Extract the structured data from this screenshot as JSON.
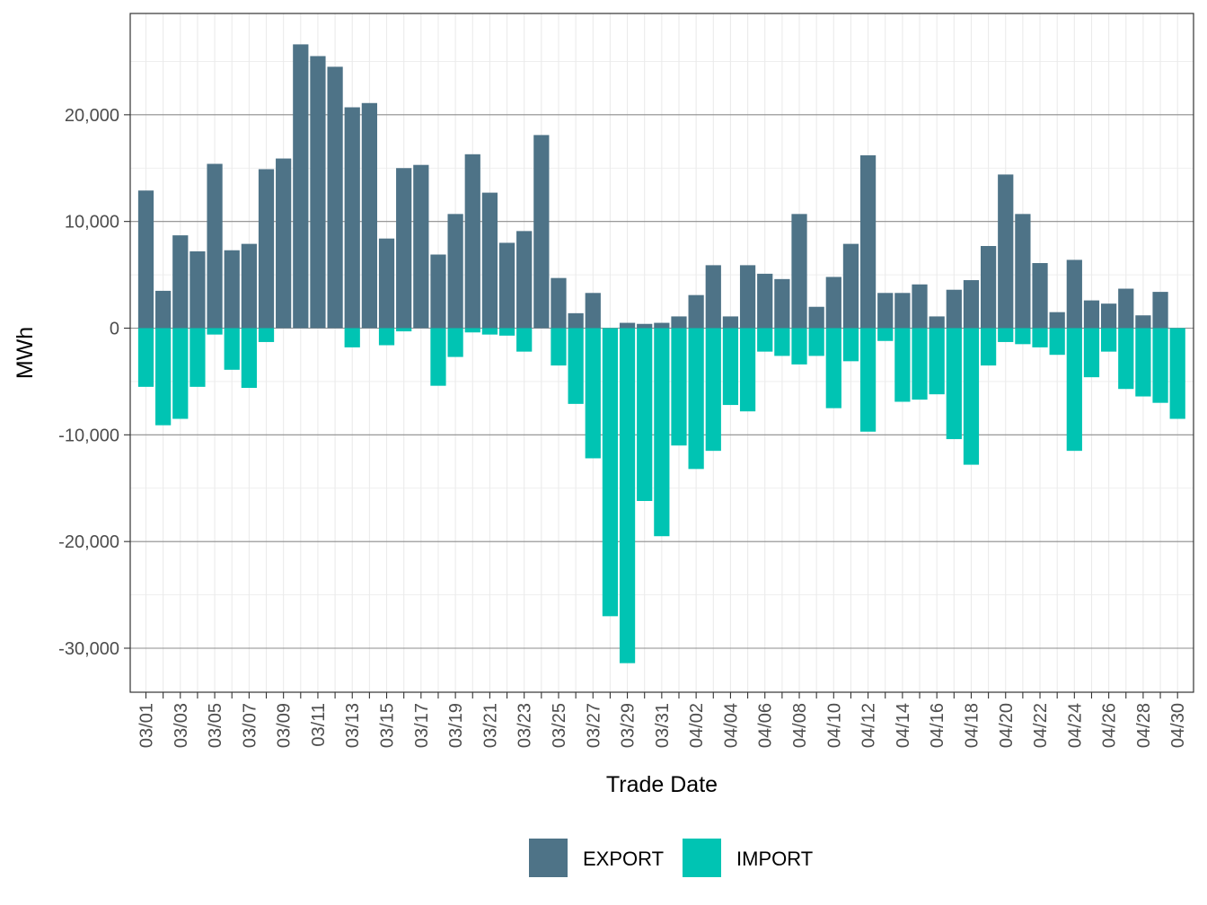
{
  "chart_data": {
    "type": "bar",
    "stacked": "diverging",
    "title": "",
    "xlabel": "Trade Date",
    "ylabel": "MWh",
    "ylim": [
      -34000,
      29500
    ],
    "y_ticks": [
      -30000,
      -20000,
      -10000,
      0,
      10000,
      20000
    ],
    "y_tick_labels": [
      "-30,000",
      "-20,000",
      "-10,000",
      "0",
      "10,000",
      "20,000"
    ],
    "categories": [
      "03/01",
      "03/02",
      "03/03",
      "03/04",
      "03/05",
      "03/06",
      "03/07",
      "03/08",
      "03/09",
      "03/10",
      "03/11",
      "03/12",
      "03/13",
      "03/14",
      "03/15",
      "03/16",
      "03/17",
      "03/18",
      "03/19",
      "03/20",
      "03/21",
      "03/22",
      "03/23",
      "03/24",
      "03/25",
      "03/26",
      "03/27",
      "03/28",
      "03/29",
      "03/30",
      "03/31",
      "04/01",
      "04/02",
      "04/03",
      "04/04",
      "04/05",
      "04/06",
      "04/07",
      "04/08",
      "04/09",
      "04/10",
      "04/11",
      "04/12",
      "04/13",
      "04/14",
      "04/15",
      "04/16",
      "04/17",
      "04/18",
      "04/19",
      "04/20",
      "04/21",
      "04/22",
      "04/23",
      "04/24",
      "04/25",
      "04/26",
      "04/27",
      "04/28",
      "04/29",
      "04/30"
    ],
    "tick_labels": [
      "03/01",
      "03/03",
      "03/05",
      "03/07",
      "03/09",
      "03/11",
      "03/13",
      "03/15",
      "03/17",
      "03/19",
      "03/21",
      "03/23",
      "03/25",
      "03/27",
      "03/29",
      "03/31",
      "04/02",
      "04/04",
      "04/06",
      "04/08",
      "04/10",
      "04/12",
      "04/14",
      "04/16",
      "04/18",
      "04/20",
      "04/22",
      "04/24",
      "04/26",
      "04/28",
      "04/30"
    ],
    "series": [
      {
        "name": "EXPORT",
        "color": "#4e7387",
        "values": [
          12900,
          3500,
          8700,
          7200,
          15400,
          7300,
          7900,
          14900,
          15900,
          26600,
          25500,
          24500,
          20700,
          21100,
          8400,
          15000,
          15300,
          6900,
          10700,
          16300,
          12700,
          8000,
          9100,
          18100,
          4700,
          1400,
          3300,
          0,
          500,
          400,
          500,
          1100,
          3100,
          5900,
          1100,
          5900,
          5100,
          4600,
          10700,
          2000,
          4800,
          7900,
          16200,
          3300,
          3300,
          4100,
          1100,
          3600,
          4500,
          7700,
          14400,
          10700,
          6100,
          1500,
          6400,
          2600,
          2300,
          3700,
          1200,
          3400,
          0
        ]
      },
      {
        "name": "IMPORT",
        "color": "#00c4b3",
        "values": [
          -5500,
          -9100,
          -8500,
          -5500,
          -600,
          -3900,
          -5600,
          -1300,
          0,
          0,
          0,
          0,
          -1800,
          0,
          -1600,
          -300,
          0,
          -5400,
          -2700,
          -400,
          -600,
          -700,
          -2200,
          0,
          -3500,
          -7100,
          -12200,
          -27000,
          -31400,
          -16200,
          -19500,
          -11000,
          -13200,
          -11500,
          -7200,
          -7800,
          -2200,
          -2600,
          -3400,
          -2600,
          -7500,
          -3100,
          -9700,
          -1200,
          -6900,
          -6700,
          -6200,
          -10400,
          -12800,
          -3500,
          -1300,
          -1500,
          -1800,
          -2500,
          -11500,
          -4600,
          -2200,
          -5700,
          -6400,
          -7000,
          -8500
        ]
      }
    ],
    "legend_position": "bottom",
    "grid": true
  }
}
